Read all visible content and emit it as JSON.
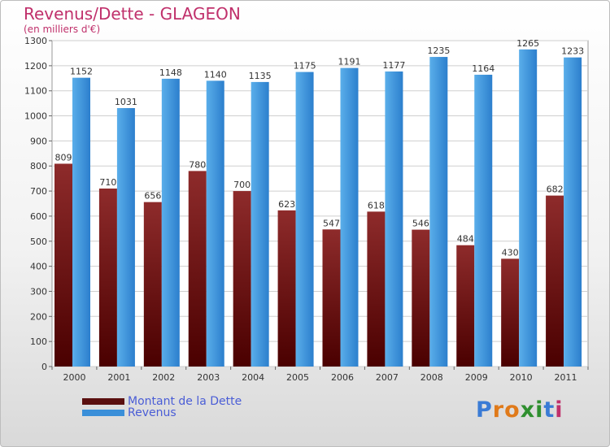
{
  "chart_data": {
    "type": "bar",
    "title": "Revenus/Dette - GLAGEON",
    "subtitle": "(en milliers d'€)",
    "categories": [
      "2000",
      "2001",
      "2002",
      "2003",
      "2004",
      "2005",
      "2006",
      "2007",
      "2008",
      "2009",
      "2010",
      "2011"
    ],
    "series": [
      {
        "name": "Montant de la Dette",
        "values": [
          809,
          710,
          656,
          780,
          700,
          623,
          547,
          618,
          546,
          484,
          430,
          682
        ]
      },
      {
        "name": "Revenus",
        "values": [
          1152,
          1031,
          1148,
          1140,
          1135,
          1175,
          1191,
          1177,
          1235,
          1164,
          1265,
          1233
        ]
      }
    ],
    "ylim": [
      0,
      1300
    ],
    "yticks": [
      0,
      100,
      200,
      300,
      400,
      500,
      600,
      700,
      800,
      900,
      1000,
      1100,
      1200,
      1300
    ],
    "grid": true,
    "legend": "bottom-left"
  },
  "colors": {
    "dette": "#6b1a1a",
    "revenus": "#3a8fd9",
    "title": "#c0306b",
    "legend_text": "#4a5dd6"
  },
  "logo": {
    "text": "Proxiti",
    "letters": [
      "P",
      "r",
      "o",
      "x",
      "i",
      "t",
      "i"
    ],
    "letter_colors": [
      "#3a7bd5",
      "#e07a1a",
      "#e07a1a",
      "#2f8f2f",
      "#2f8f2f",
      "#3a7bd5",
      "#c0306b"
    ]
  }
}
